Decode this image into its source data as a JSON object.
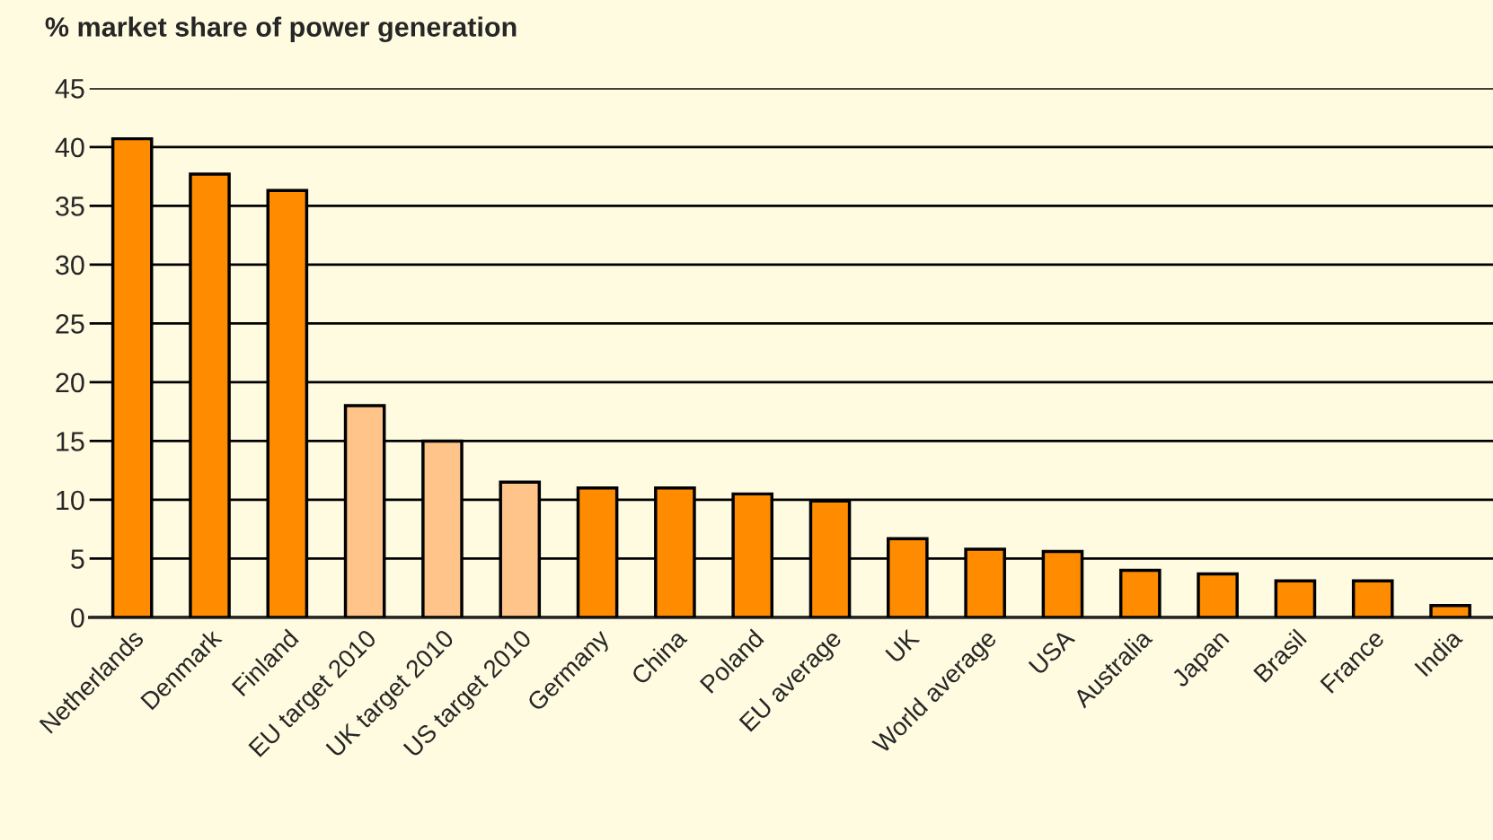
{
  "chart_data": {
    "type": "bar",
    "title": "% market share of power generation",
    "categories": [
      "Netherlands",
      "Denmark",
      "Finland",
      "EU target 2010",
      "UK target 2010",
      "US target 2010",
      "Germany",
      "China",
      "Poland",
      "EU average",
      "UK",
      "World average",
      "USA",
      "Australia",
      "Japan",
      "Brasil",
      "France",
      "India"
    ],
    "values": [
      40.7,
      37.7,
      36.3,
      18.0,
      15.0,
      11.5,
      11.0,
      11.0,
      10.5,
      9.9,
      6.7,
      5.8,
      5.6,
      4.0,
      3.7,
      3.1,
      3.1,
      1.0
    ],
    "colors": [
      "#ff8c00",
      "#ff8c00",
      "#ff8c00",
      "#ffc48a",
      "#ffc48a",
      "#ffc48a",
      "#ff8c00",
      "#ff8c00",
      "#ff8c00",
      "#ff8c00",
      "#ff8c00",
      "#ff8c00",
      "#ff8c00",
      "#ff8c00",
      "#ff8c00",
      "#ff8c00",
      "#ff8c00",
      "#ff8c00"
    ],
    "ylim": [
      0,
      45
    ],
    "yticks": [
      0,
      5,
      10,
      15,
      20,
      25,
      30,
      35,
      40,
      45
    ],
    "grid": "y"
  }
}
